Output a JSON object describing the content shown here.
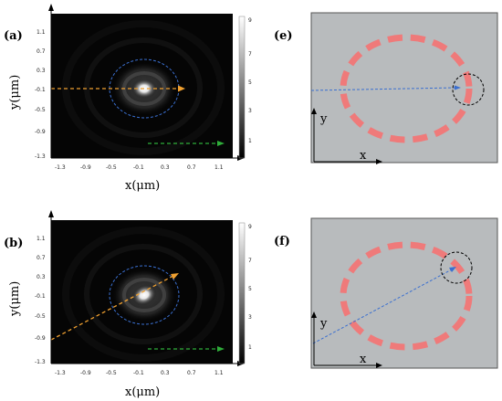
{
  "panels": {
    "a": {
      "label": "(a)"
    },
    "b": {
      "label": "(b)"
    },
    "e": {
      "label": "(e)"
    },
    "f": {
      "label": "(f)"
    }
  },
  "intensity_map": {
    "y_ticks": [
      "1.1",
      "0.7",
      "0.3",
      "-0.1",
      "-0.5",
      "-0.9",
      "-1.3"
    ],
    "x_ticks": [
      "-1.3",
      "-0.9",
      "-0.5",
      "-0.1",
      "0.3",
      "0.7",
      "1.1"
    ],
    "colorbar_ticks": [
      "9",
      "7",
      "5",
      "3",
      "1"
    ],
    "xlabel": "x(μm)",
    "ylabel": "y(μm)"
  },
  "schematic": {
    "x_label": "x",
    "y_label": "y"
  },
  "colors": {
    "ring": "#ef7a7a",
    "ring_background": "#b8bbbd",
    "orange_arrow": "#f0a030",
    "blue_arrow": "#3a6fd0",
    "green_arrow": "#2fae3a"
  }
}
